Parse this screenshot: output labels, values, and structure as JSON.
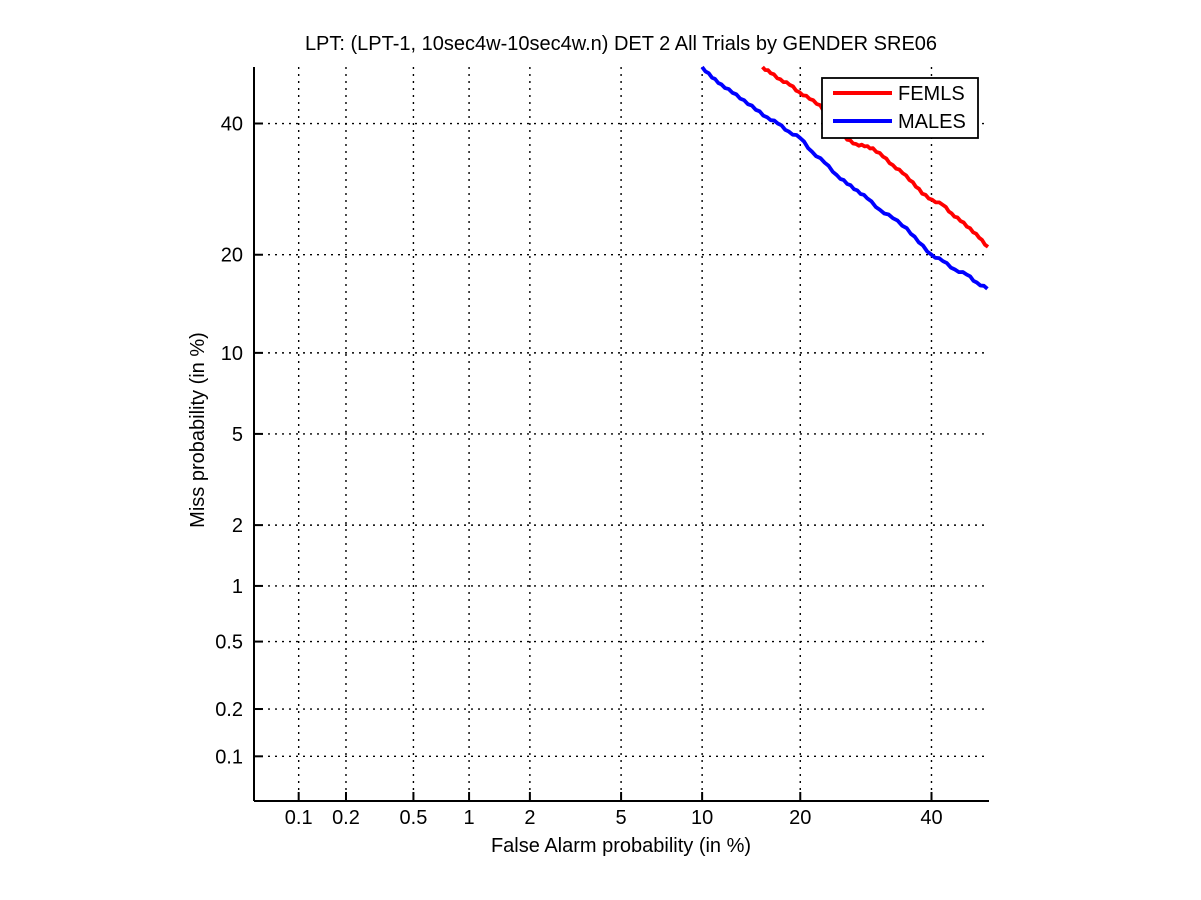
{
  "chart_data": {
    "type": "line",
    "subtype": "DET-curve",
    "title": "LPT: (LPT-1, 10sec4w-10sec4w.n) DET 2 All Trials by GENDER SRE06",
    "xlabel": "False Alarm probability (in %)",
    "ylabel": "Miss probability (in %)",
    "scale": "probit-probit (normal deviate scale on both axes)",
    "xlim_pct": [
      0.05,
      50
    ],
    "ylim_pct": [
      0.05,
      50
    ],
    "x_ticks_pct": [
      0.1,
      0.2,
      0.5,
      1,
      2,
      5,
      10,
      20,
      40
    ],
    "y_ticks_pct": [
      0.1,
      0.2,
      0.5,
      1,
      2,
      5,
      10,
      20,
      40
    ],
    "grid": "dotted",
    "legend": {
      "position": "top-right",
      "entries": [
        {
          "label": "FEMLS",
          "color": "#ff0000"
        },
        {
          "label": "MALES",
          "color": "#0000ff"
        }
      ]
    },
    "series": [
      {
        "name": "FEMLS",
        "color": "#ff0000",
        "fa_pct": [
          15.6,
          16.5,
          17.6,
          18.7,
          19.9,
          21.2,
          22.6,
          23.8,
          25.1,
          26.4,
          27.7,
          29.0,
          30.3,
          31.9,
          33.5,
          35.1,
          36.8,
          38.4,
          40.1,
          42.0,
          43.5,
          45.1,
          46.8,
          48.4,
          50.0
        ],
        "miss_pct": [
          50.0,
          48.9,
          47.8,
          46.8,
          45.5,
          44.3,
          43.2,
          41.0,
          39.0,
          37.2,
          36.5,
          36.1,
          35.8,
          34.4,
          33.0,
          31.7,
          30.3,
          28.5,
          27.6,
          26.8,
          25.6,
          24.5,
          23.5,
          22.2,
          21.0
        ]
      },
      {
        "name": "MALES",
        "color": "#0000ff",
        "fa_pct": [
          10.0,
          10.8,
          11.6,
          12.6,
          13.7,
          14.9,
          16.1,
          17.3,
          18.6,
          20.0,
          21.5,
          23.2,
          24.9,
          26.4,
          27.9,
          29.4,
          31.4,
          33.5,
          35.8,
          37.8,
          40.0,
          42.0,
          44.1,
          46.2,
          48.0,
          49.9
        ],
        "miss_pct": [
          50.0,
          48.1,
          46.9,
          45.4,
          44.1,
          42.4,
          41.1,
          40.0,
          38.6,
          37.5,
          35.2,
          33.4,
          31.4,
          30.0,
          29.0,
          27.8,
          26.1,
          24.9,
          23.5,
          21.6,
          20.0,
          19.2,
          18.2,
          17.6,
          16.7,
          16.0
        ]
      }
    ]
  },
  "colors": {
    "background": "#ffffff",
    "axis": "#000000",
    "grid": "#000000",
    "text": "#000000",
    "femls": "#ff0000",
    "males": "#0000ff"
  }
}
